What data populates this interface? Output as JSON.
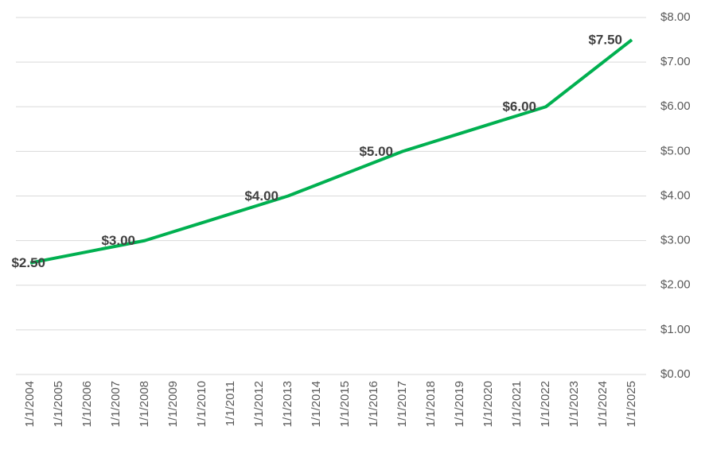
{
  "chart_data": {
    "type": "line",
    "categories": [
      "1/1/2004",
      "1/1/2005",
      "1/1/2006",
      "1/1/2007",
      "1/1/2008",
      "1/1/2009",
      "1/1/2010",
      "1/1/2011",
      "1/1/2012",
      "1/1/2013",
      "1/1/2014",
      "1/1/2015",
      "1/1/2016",
      "1/1/2017",
      "1/1/2018",
      "1/1/2019",
      "1/1/2020",
      "1/1/2021",
      "1/1/2022",
      "1/1/2023",
      "1/1/2024",
      "1/1/2025"
    ],
    "series": [
      {
        "color": "#00b050",
        "values": [
          2.5,
          2.625,
          2.75,
          2.875,
          3.0,
          3.2,
          3.4,
          3.6,
          3.8,
          4.0,
          4.25,
          4.5,
          4.75,
          5.0,
          5.2,
          5.4,
          5.6,
          5.8,
          6.0,
          6.5,
          7.0,
          7.5
        ],
        "value_labels": [
          "$2.50",
          null,
          null,
          null,
          "$3.00",
          null,
          null,
          null,
          null,
          "$4.00",
          null,
          null,
          null,
          "$5.00",
          null,
          null,
          null,
          null,
          "$6.00",
          null,
          null,
          "$7.50"
        ]
      }
    ],
    "ylim": [
      0,
      8
    ],
    "yticks": [
      {
        "value": 0,
        "label": "$0.00"
      },
      {
        "value": 1,
        "label": "$1.00"
      },
      {
        "value": 2,
        "label": "$2.00"
      },
      {
        "value": 3,
        "label": "$3.00"
      },
      {
        "value": 4,
        "label": "$4.00"
      },
      {
        "value": 5,
        "label": "$5.00"
      },
      {
        "value": 6,
        "label": "$6.00"
      },
      {
        "value": 7,
        "label": "$7.00"
      },
      {
        "value": 8,
        "label": "$8.00"
      }
    ],
    "grid": true
  }
}
